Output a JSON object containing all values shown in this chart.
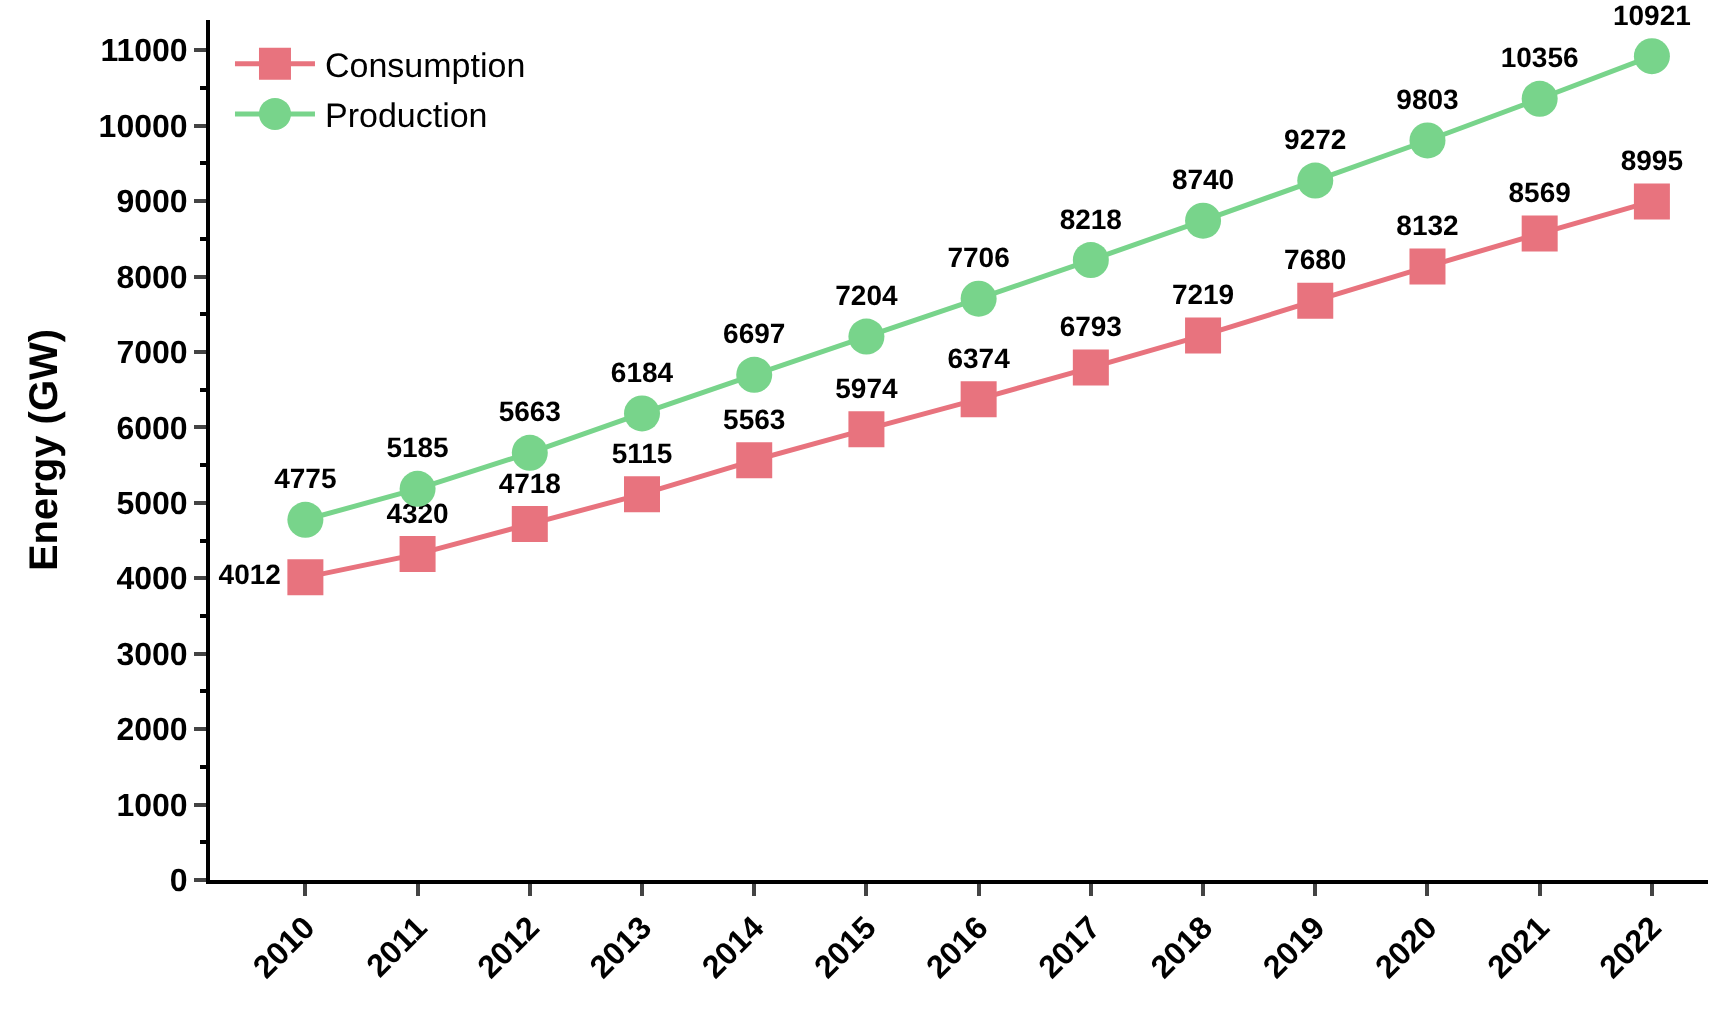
{
  "chart_data": {
    "type": "line",
    "ylabel": "Energy (GW)",
    "categories": [
      "2010",
      "2011",
      "2012",
      "2013",
      "2014",
      "2015",
      "2016",
      "2017",
      "2018",
      "2019",
      "2020",
      "2021",
      "2022"
    ],
    "series": [
      {
        "name": "Consumption",
        "color": "#e8737e",
        "marker": "square",
        "values": [
          4012,
          4320,
          4718,
          5115,
          5563,
          5974,
          6374,
          6793,
          7219,
          7680,
          8132,
          8569,
          8995
        ]
      },
      {
        "name": "Production",
        "color": "#78d48b",
        "marker": "circle",
        "values": [
          4775,
          5185,
          5663,
          6184,
          6697,
          7204,
          7706,
          8218,
          8740,
          9272,
          9803,
          10356,
          10921
        ]
      }
    ],
    "ylim": [
      0,
      11400
    ],
    "yticks": [
      0,
      1000,
      2000,
      3000,
      4000,
      5000,
      6000,
      7000,
      8000,
      9000,
      10000,
      11000
    ],
    "legend": "top left",
    "data_labels": true,
    "line_style": "solid"
  }
}
